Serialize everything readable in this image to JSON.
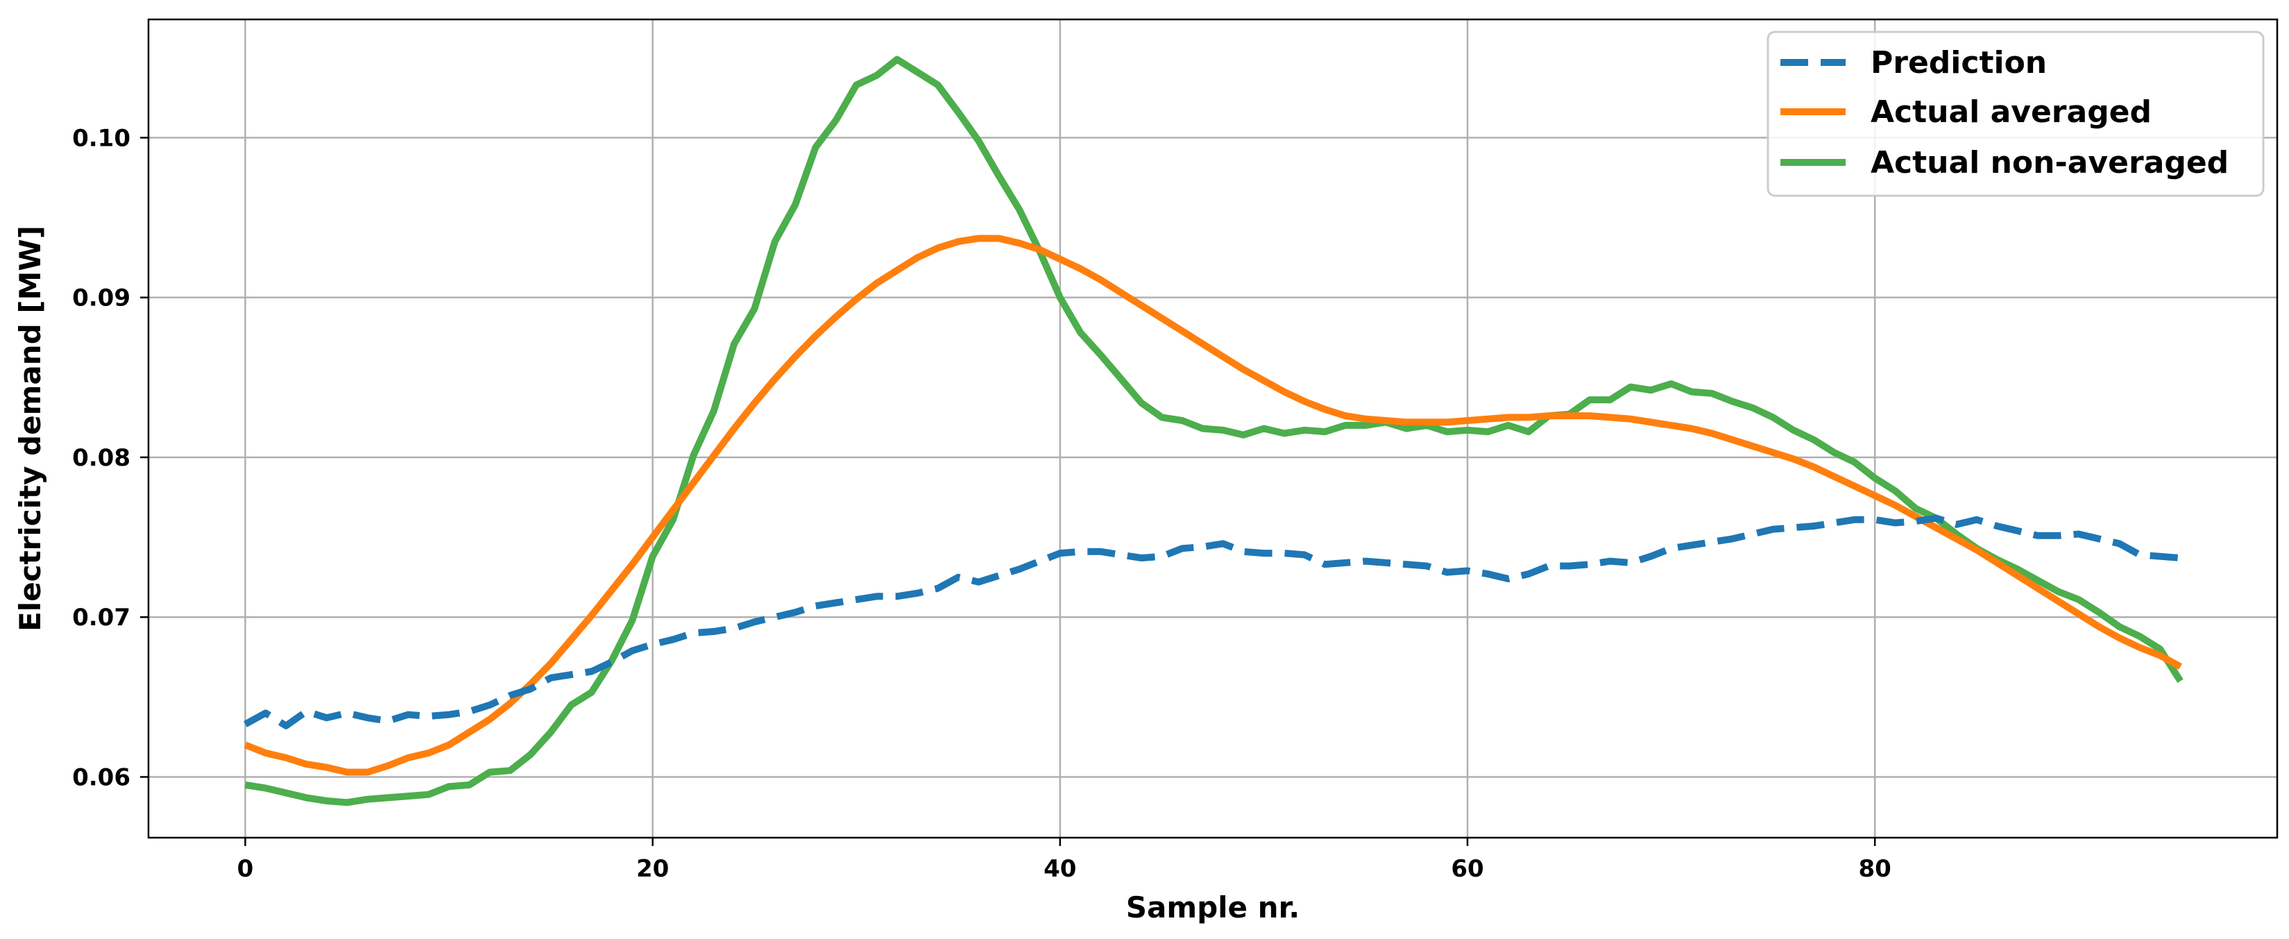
{
  "chart_data": {
    "type": "line",
    "title": "",
    "xlabel": "Sample nr.",
    "ylabel": "Electricity demand [MW]",
    "xlim": [
      -4.75,
      99.75
    ],
    "ylim": [
      0.0562,
      0.1074
    ],
    "xticks": [
      0,
      20,
      40,
      60,
      80
    ],
    "xtick_labels": [
      "0",
      "20",
      "40",
      "60",
      "80"
    ],
    "yticks": [
      0.06,
      0.07,
      0.08,
      0.09,
      0.1
    ],
    "ytick_labels": [
      "0.06",
      "0.07",
      "0.08",
      "0.09",
      "0.10"
    ],
    "grid": true,
    "legend_position": "upper right",
    "series": [
      {
        "name": "Prediction",
        "color": "#1f77b4",
        "style": "dashed",
        "x": [
          0,
          1,
          2,
          3,
          4,
          5,
          6,
          7,
          8,
          9,
          10,
          11,
          12,
          13,
          14,
          15,
          16,
          17,
          18,
          19,
          20,
          21,
          22,
          23,
          24,
          25,
          26,
          27,
          28,
          29,
          30,
          31,
          32,
          33,
          34,
          35,
          36,
          37,
          38,
          39,
          40,
          41,
          42,
          43,
          44,
          45,
          46,
          47,
          48,
          49,
          50,
          51,
          52,
          53,
          54,
          55,
          56,
          57,
          58,
          59,
          60,
          61,
          62,
          63,
          64,
          65,
          66,
          67,
          68,
          69,
          70,
          71,
          72,
          73,
          74,
          75,
          76,
          77,
          78,
          79,
          80,
          81,
          82,
          83,
          84,
          85,
          86,
          87,
          88,
          89,
          90,
          91,
          92,
          93,
          94,
          95
        ],
        "y": [
          0.0633,
          0.064,
          0.0632,
          0.0641,
          0.0637,
          0.064,
          0.0637,
          0.0635,
          0.0639,
          0.0638,
          0.0639,
          0.0641,
          0.0645,
          0.0651,
          0.0655,
          0.0662,
          0.0664,
          0.0666,
          0.0672,
          0.0679,
          0.0683,
          0.0686,
          0.069,
          0.0691,
          0.0693,
          0.0697,
          0.07,
          0.0703,
          0.0707,
          0.0709,
          0.0711,
          0.0713,
          0.0713,
          0.0715,
          0.0718,
          0.0725,
          0.0722,
          0.0726,
          0.073,
          0.0735,
          0.074,
          0.0741,
          0.0741,
          0.0739,
          0.0737,
          0.0738,
          0.0743,
          0.0744,
          0.0746,
          0.0741,
          0.074,
          0.074,
          0.0739,
          0.0733,
          0.0734,
          0.0735,
          0.0734,
          0.0733,
          0.0732,
          0.0728,
          0.0729,
          0.0727,
          0.0724,
          0.0727,
          0.0732,
          0.0732,
          0.0733,
          0.0735,
          0.0734,
          0.0738,
          0.0743,
          0.0745,
          0.0747,
          0.0749,
          0.0752,
          0.0755,
          0.0756,
          0.0757,
          0.0759,
          0.0761,
          0.0761,
          0.0759,
          0.076,
          0.0762,
          0.0758,
          0.0761,
          0.0757,
          0.0754,
          0.0751,
          0.0751,
          0.0752,
          0.0749,
          0.0746,
          0.0739,
          0.0738,
          0.0737
        ]
      },
      {
        "name": "Actual averaged",
        "color": "#ff7f0e",
        "style": "solid",
        "x": [
          0,
          1,
          2,
          3,
          4,
          5,
          6,
          7,
          8,
          9,
          10,
          11,
          12,
          13,
          14,
          15,
          16,
          17,
          18,
          19,
          20,
          21,
          22,
          23,
          24,
          25,
          26,
          27,
          28,
          29,
          30,
          31,
          32,
          33,
          34,
          35,
          36,
          37,
          38,
          39,
          40,
          41,
          42,
          43,
          44,
          45,
          46,
          47,
          48,
          49,
          50,
          51,
          52,
          53,
          54,
          55,
          56,
          57,
          58,
          59,
          60,
          61,
          62,
          63,
          64,
          65,
          66,
          67,
          68,
          69,
          70,
          71,
          72,
          73,
          74,
          75,
          76,
          77,
          78,
          79,
          80,
          81,
          82,
          83,
          84,
          85,
          86,
          87,
          88,
          89,
          90,
          91,
          92,
          93,
          94,
          95
        ],
        "y": [
          0.062,
          0.0615,
          0.0612,
          0.0608,
          0.0606,
          0.0603,
          0.0603,
          0.0607,
          0.0612,
          0.0615,
          0.062,
          0.0628,
          0.0636,
          0.0646,
          0.0658,
          0.0671,
          0.0686,
          0.0701,
          0.0717,
          0.0733,
          0.075,
          0.0767,
          0.0784,
          0.0801,
          0.0818,
          0.0834,
          0.0849,
          0.0863,
          0.0876,
          0.0888,
          0.0899,
          0.0909,
          0.0917,
          0.0925,
          0.0931,
          0.0935,
          0.0937,
          0.0937,
          0.0934,
          0.093,
          0.0924,
          0.0918,
          0.0911,
          0.0903,
          0.0895,
          0.0887,
          0.0879,
          0.0871,
          0.0863,
          0.0855,
          0.0848,
          0.0841,
          0.0835,
          0.083,
          0.0826,
          0.0824,
          0.0823,
          0.0822,
          0.0822,
          0.0822,
          0.0823,
          0.0824,
          0.0825,
          0.0825,
          0.0826,
          0.0826,
          0.0826,
          0.0825,
          0.0824,
          0.0822,
          0.082,
          0.0818,
          0.0815,
          0.0811,
          0.0807,
          0.0803,
          0.0799,
          0.0794,
          0.0788,
          0.0782,
          0.0776,
          0.077,
          0.0763,
          0.0756,
          0.0749,
          0.0742,
          0.0734,
          0.0726,
          0.0718,
          0.071,
          0.0702,
          0.0694,
          0.0687,
          0.0681,
          0.0676,
          0.0669
        ]
      },
      {
        "name": "Actual non-averaged",
        "color": "#4cae4c",
        "style": "solid",
        "x": [
          0,
          1,
          2,
          3,
          4,
          5,
          6,
          7,
          8,
          9,
          10,
          11,
          12,
          13,
          14,
          15,
          16,
          17,
          18,
          19,
          20,
          21,
          22,
          23,
          24,
          25,
          26,
          27,
          28,
          29,
          30,
          31,
          32,
          33,
          34,
          35,
          36,
          37,
          38,
          39,
          40,
          41,
          42,
          43,
          44,
          45,
          46,
          47,
          48,
          49,
          50,
          51,
          52,
          53,
          54,
          55,
          56,
          57,
          58,
          59,
          60,
          61,
          62,
          63,
          64,
          65,
          66,
          67,
          68,
          69,
          70,
          71,
          72,
          73,
          74,
          75,
          76,
          77,
          78,
          79,
          80,
          81,
          82,
          83,
          84,
          85,
          86,
          87,
          88,
          89,
          90,
          91,
          92,
          93,
          94,
          95
        ],
        "y": [
          0.0595,
          0.0593,
          0.059,
          0.0587,
          0.0585,
          0.0584,
          0.0586,
          0.0587,
          0.0588,
          0.0589,
          0.0594,
          0.0595,
          0.0603,
          0.0604,
          0.0614,
          0.0628,
          0.0645,
          0.0653,
          0.0673,
          0.0698,
          0.0738,
          0.0761,
          0.0801,
          0.0829,
          0.0871,
          0.0893,
          0.0935,
          0.0958,
          0.0994,
          0.1011,
          0.1033,
          0.1039,
          0.1049,
          0.1041,
          0.1033,
          0.1016,
          0.0998,
          0.0976,
          0.0955,
          0.0929,
          0.09,
          0.0878,
          0.0864,
          0.0849,
          0.0834,
          0.0825,
          0.0823,
          0.0818,
          0.0817,
          0.0814,
          0.0818,
          0.0815,
          0.0817,
          0.0816,
          0.082,
          0.082,
          0.0822,
          0.0818,
          0.082,
          0.0816,
          0.0817,
          0.0816,
          0.082,
          0.0816,
          0.0826,
          0.0827,
          0.0836,
          0.0836,
          0.0844,
          0.0842,
          0.0846,
          0.0841,
          0.084,
          0.0835,
          0.0831,
          0.0825,
          0.0817,
          0.0811,
          0.0803,
          0.0797,
          0.0787,
          0.0779,
          0.0768,
          0.0762,
          0.0752,
          0.0743,
          0.0736,
          0.073,
          0.0723,
          0.0716,
          0.0711,
          0.0703,
          0.0694,
          0.0688,
          0.068,
          0.066
        ]
      }
    ]
  }
}
